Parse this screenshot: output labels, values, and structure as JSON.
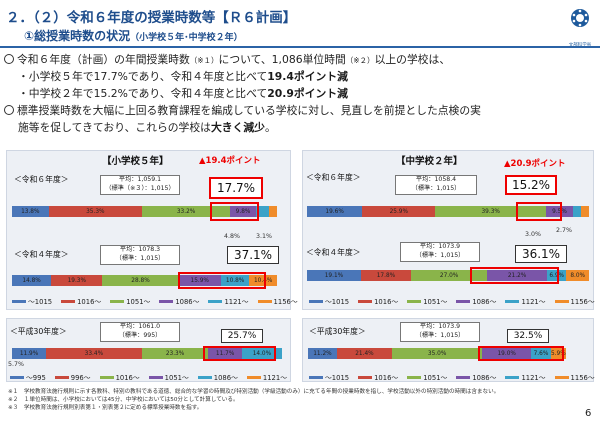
{
  "header": {
    "title": "２．（２）令和６年度の授業時数等【Ｒ６計画】",
    "subtitle_main": "①総授業時数の状況",
    "subtitle_sub": "（小学校５年･中学校２年）",
    "org": "文部科学省"
  },
  "bullets": {
    "b1": [
      "令和６年度（計画）の年間授業時数",
      "（※１）",
      "について、1,086単位時間",
      "（※２）",
      "以上の学校は、"
    ],
    "b1_l2": [
      "・小学校５年で17.7%であり、令和４年度と比べて",
      "19.4ポイント減"
    ],
    "b1_l3": [
      "・中学校２年で15.2%であり、令和４年度と比べて",
      "20.9ポイント減"
    ],
    "b2": [
      "標準授業時数を大幅に上回る教育課程を編成している学校に対し、見直しを前提とした点検の実",
      "施等を促してきており、これらの学校は",
      "大きく減少",
      "。"
    ]
  },
  "elem": {
    "title": "【小学校５年】",
    "pt": "▲19.4ポイント",
    "r6": {
      "label": "＜令和６年度＞",
      "avg": "平均：1,059.1",
      "std": "（標準（※３）：1,015）",
      "pct": "17.7%",
      "segs": [
        "13.8%",
        "35.3%",
        "33.2%",
        "9.8%",
        "",
        ""
      ],
      "vals": [
        13.8,
        35.3,
        33.2,
        9.8,
        4.8,
        3.1
      ],
      "n1": "4.8%",
      "n2": "3.1%"
    },
    "r4": {
      "label": "＜令和４年度＞",
      "avg": "平均：1078.3",
      "std": "（標準：1,015）",
      "pct": "37.1%",
      "segs": [
        "14.8%",
        "19.3%",
        "28.8%",
        "15.9%",
        "10.8%",
        "10.4%"
      ],
      "vals": [
        14.8,
        19.3,
        28.8,
        15.9,
        10.8,
        10.4
      ]
    },
    "legend": [
      "～1015",
      "1016～",
      "1051～",
      "1086～",
      "1121～",
      "1156～"
    ],
    "h30": {
      "label": "＜平成30年度＞",
      "avg": "平均：1061.0",
      "std": "（標準：995）",
      "pct": "25.7%",
      "segs": [
        "11.9%",
        "33.4%",
        "23.3%",
        "11.7%",
        "14.0%"
      ],
      "vals": [
        11.9,
        33.4,
        23.3,
        11.7,
        14.0
      ],
      "n1": "5.7%"
    },
    "legend_h30": [
      "～995",
      "996～",
      "1016～",
      "1051～",
      "1086～",
      "1121～"
    ]
  },
  "mid": {
    "title": "【中学校２年】",
    "pt": "▲20.9ポイント",
    "r6": {
      "label": "＜令和６年度＞",
      "avg": "平均：1058.4",
      "std": "（標準：1,015）",
      "pct": "15.2%",
      "segs": [
        "19.6%",
        "25.9%",
        "39.3%",
        "9.5%",
        "",
        ""
      ],
      "vals": [
        19.6,
        25.9,
        39.3,
        9.5,
        3.0,
        2.7
      ],
      "n1": "3.0%",
      "n2": "2.7%"
    },
    "r4": {
      "label": "＜令和４年度＞",
      "avg": "平均：1073.9",
      "std": "（標準：1,015）",
      "pct": "36.1%",
      "segs": [
        "19.1%",
        "17.8%",
        "27.0%",
        "21.2%",
        "6.9%",
        "8.0%"
      ],
      "vals": [
        19.1,
        17.8,
        27.0,
        21.2,
        6.9,
        8.0
      ]
    },
    "legend": [
      "～1015",
      "1016～",
      "1051～",
      "1086～",
      "1121～",
      "1156～"
    ],
    "h30": {
      "label": "＜平成30年度＞",
      "avg": "平均：1073.9",
      "std": "（標準：1,015）",
      "pct": "32.5%",
      "segs": [
        "11.2%",
        "21.4%",
        "35.0%",
        "19.0%",
        "7.6%",
        "5.9%"
      ],
      "vals": [
        11.2,
        21.4,
        35.0,
        19.0,
        7.6,
        5.9
      ]
    },
    "legend_h30": [
      "～1015",
      "1016～",
      "1051～",
      "1086～",
      "1121～",
      "1156～"
    ]
  },
  "colors": [
    "#4a76b8",
    "#c9493c",
    "#8ab44a",
    "#7a55a8",
    "#3ba2c8",
    "#f08c2a"
  ],
  "footnotes": [
    "※１　学校教育法施行規則に示す各教科、特別の教科である道徳、総合的な学習の時間及び特別活動（学級活動のみ）に充てる年間の授業時数を指し、学校活動以外の特別活動の時間は含まない。",
    "※２　１単位時間は、小学校においては45分、中学校においては50分として計算している。",
    "※３　学校教育法施行規則別表第１・別表第２に定める標準授業時数を指す。"
  ],
  "page": "6"
}
